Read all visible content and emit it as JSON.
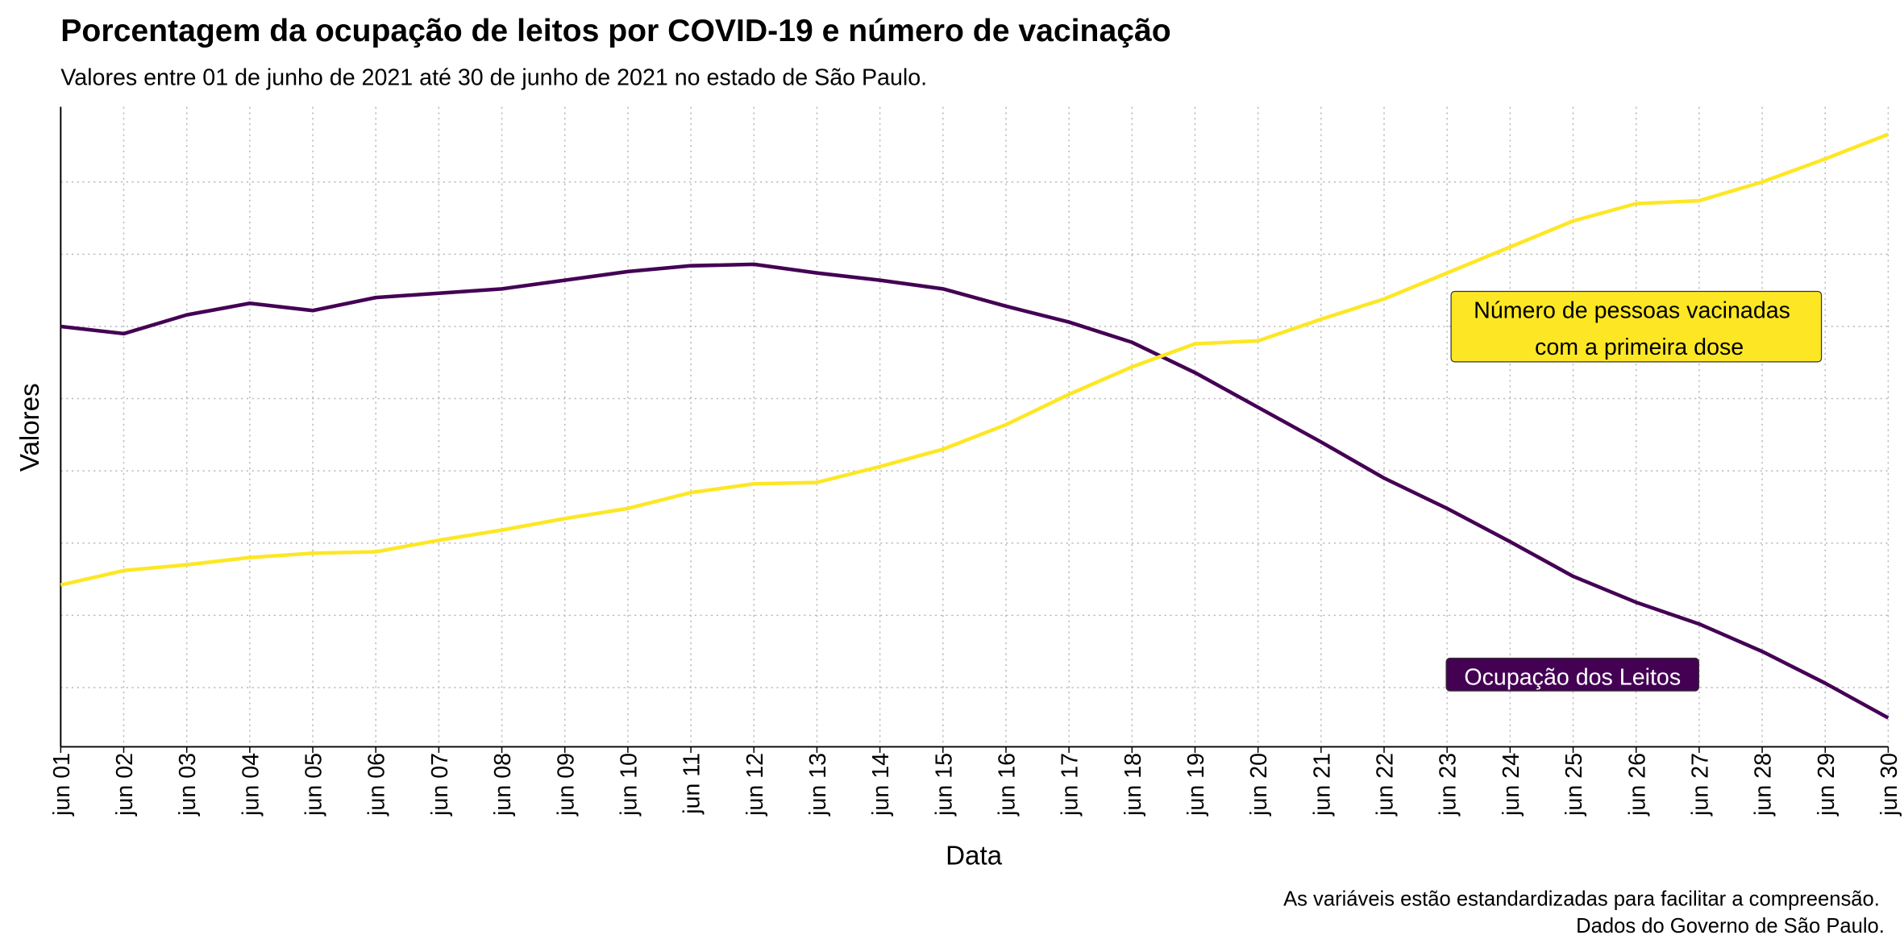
{
  "chart_data": {
    "type": "line",
    "title": "Porcentagem da ocupação de leitos por COVID-19 e número de vacinação",
    "subtitle": "Valores entre 01 de junho de 2021 até 30 de junho de 2021 no estado de São Paulo.",
    "x_label": "Data",
    "y_label": "Valores",
    "caption": [
      "As variáveis estão estandardizadas para facilitar a compreensão.",
      "Dados do Governo de São Paulo."
    ],
    "categories": [
      "jun 01",
      "jun 02",
      "jun 03",
      "jun 04",
      "jun 05",
      "jun 06",
      "jun 07",
      "jun 08",
      "jun 09",
      "jun 10",
      "jun 11",
      "jun 12",
      "jun 13",
      "jun 14",
      "jun 15",
      "jun 16",
      "jun 17",
      "jun 18",
      "jun 19",
      "jun 20",
      "jun 21",
      "jun 22",
      "jun 23",
      "jun 24",
      "jun 25",
      "jun 26",
      "jun 27",
      "jun 28",
      "jun 29",
      "jun 30"
    ],
    "series": [
      {
        "color": "#440154",
        "values": [
          0.5,
          0.45,
          0.58,
          0.66,
          0.61,
          0.7,
          0.73,
          0.76,
          0.82,
          0.88,
          0.92,
          0.93,
          0.87,
          0.82,
          0.76,
          0.64,
          0.53,
          0.39,
          0.18,
          -0.06,
          -0.3,
          -0.55,
          -0.76,
          -0.99,
          -1.23,
          -1.41,
          -1.56,
          -1.75,
          -1.97,
          -2.21
        ]
      },
      {
        "color": "#fde725",
        "values": [
          -1.29,
          -1.19,
          -1.15,
          -1.1,
          -1.07,
          -1.06,
          -0.98,
          -0.91,
          -0.83,
          -0.76,
          -0.65,
          -0.59,
          -0.58,
          -0.47,
          -0.35,
          -0.18,
          0.03,
          0.22,
          0.38,
          0.4,
          0.55,
          0.69,
          0.87,
          1.05,
          1.23,
          1.35,
          1.37,
          1.5,
          1.66,
          1.83
        ]
      }
    ],
    "annotations": [
      {
        "lines": [
          "Número de pessoas vacinadas",
          "com a primeira dose"
        ],
        "fill": "#fde725",
        "text_color": "#000000"
      },
      {
        "lines": [
          "Ocupação dos Leitos"
        ],
        "fill": "#440154",
        "text_color": "#ffffff"
      }
    ],
    "ylim": [
      -2.41,
      2.02
    ],
    "yticks": [
      -2.0,
      -1.5,
      -1.0,
      -0.5,
      0,
      0.5,
      1.0,
      1.5
    ],
    "grid": true
  }
}
